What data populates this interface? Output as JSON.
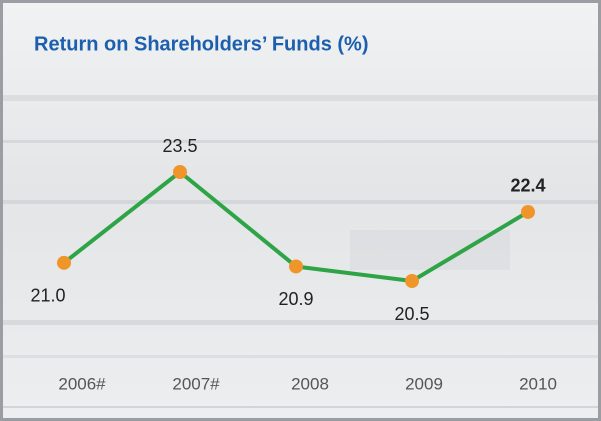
{
  "chart_data": {
    "type": "line",
    "title": "Return on Shareholders’ Funds (%)",
    "categories": [
      "2006#",
      "2007#",
      "2008",
      "2009",
      "2010"
    ],
    "values": [
      21.0,
      23.5,
      20.9,
      20.5,
      22.4
    ],
    "value_labels": [
      "21.0",
      "23.5",
      "20.9",
      "20.5",
      "22.4"
    ],
    "color": "#2ea447",
    "marker_color": "#f0952a"
  }
}
